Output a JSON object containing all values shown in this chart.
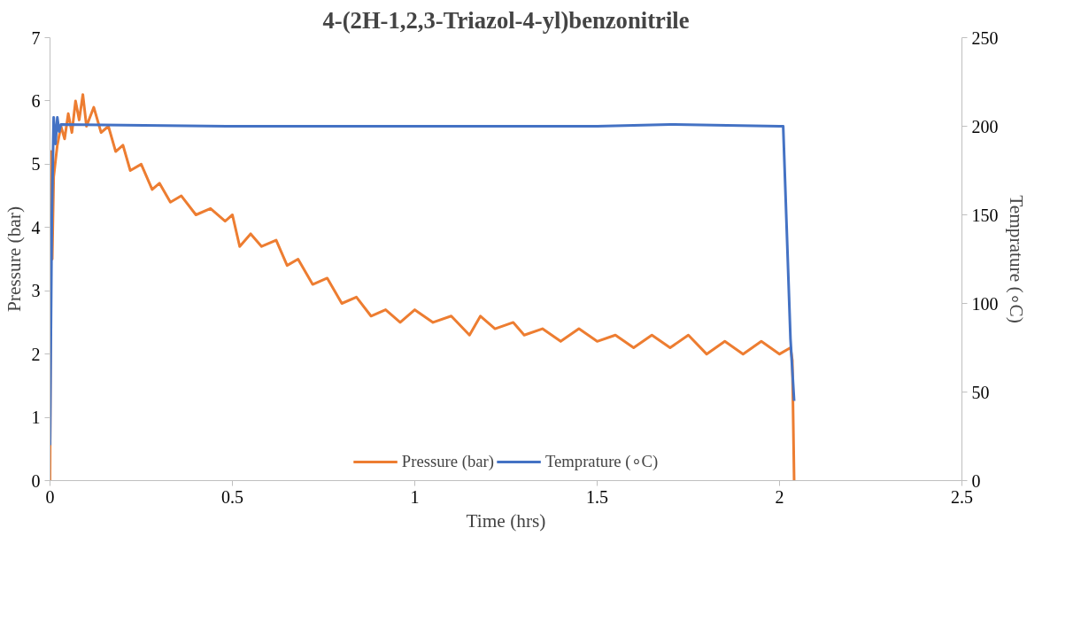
{
  "chart_data": {
    "type": "line",
    "title": "4-(2H-1,2,3-Triazol-4-yl)benzonitrile",
    "xlabel": "Time (hrs)",
    "ylabel": "Pressure (bar)",
    "y2label": "Temprature (∘C)",
    "xlim": [
      0,
      2.5
    ],
    "xticks": [
      0,
      0.5,
      1,
      1.5,
      2,
      2.5
    ],
    "ylim": [
      0,
      7
    ],
    "yticks": [
      0,
      1,
      2,
      3,
      4,
      5,
      6,
      7
    ],
    "y2lim": [
      0,
      250
    ],
    "y2ticks": [
      0,
      50,
      100,
      150,
      200,
      250
    ],
    "grid": false,
    "legend": "bottom",
    "marker": "none",
    "line_style": "solid",
    "series": [
      {
        "name": "Pressure (bar)",
        "color": "#ed7d31",
        "x": [
          0,
          0.003,
          0.006,
          0.01,
          0.02,
          0.03,
          0.04,
          0.05,
          0.06,
          0.07,
          0.08,
          0.09,
          0.1,
          0.12,
          0.14,
          0.16,
          0.18,
          0.2,
          0.22,
          0.25,
          0.28,
          0.3,
          0.33,
          0.36,
          0.4,
          0.44,
          0.48,
          0.5,
          0.52,
          0.55,
          0.58,
          0.62,
          0.65,
          0.68,
          0.72,
          0.76,
          0.8,
          0.84,
          0.88,
          0.92,
          0.96,
          1.0,
          1.05,
          1.1,
          1.15,
          1.18,
          1.22,
          1.27,
          1.3,
          1.35,
          1.4,
          1.45,
          1.5,
          1.55,
          1.6,
          1.65,
          1.7,
          1.75,
          1.8,
          1.85,
          1.9,
          1.95,
          2.0,
          2.03,
          2.035,
          2.04
        ],
        "values": [
          0,
          5.2,
          3.5,
          4.8,
          5.3,
          5.6,
          5.4,
          5.8,
          5.5,
          6.0,
          5.7,
          6.1,
          5.6,
          5.9,
          5.5,
          5.6,
          5.2,
          5.3,
          4.9,
          5.0,
          4.6,
          4.7,
          4.4,
          4.5,
          4.2,
          4.3,
          4.1,
          4.2,
          3.7,
          3.9,
          3.7,
          3.8,
          3.4,
          3.5,
          3.1,
          3.2,
          2.8,
          2.9,
          2.6,
          2.7,
          2.5,
          2.7,
          2.5,
          2.6,
          2.3,
          2.6,
          2.4,
          2.5,
          2.3,
          2.4,
          2.2,
          2.4,
          2.2,
          2.3,
          2.1,
          2.3,
          2.1,
          2.3,
          2.0,
          2.2,
          2.0,
          2.2,
          2.0,
          2.1,
          1.9,
          0
        ]
      },
      {
        "name": "Temprature (∘C)",
        "color": "#4472c4",
        "axis": "y2",
        "x": [
          0,
          0.005,
          0.01,
          0.015,
          0.02,
          0.025,
          0.03,
          0.5,
          1.0,
          1.5,
          1.7,
          2.0,
          2.01,
          2.03,
          2.04
        ],
        "values": [
          20,
          150,
          205,
          190,
          205,
          197,
          201,
          200,
          200,
          200,
          201,
          200,
          200,
          80,
          45
        ]
      }
    ]
  }
}
